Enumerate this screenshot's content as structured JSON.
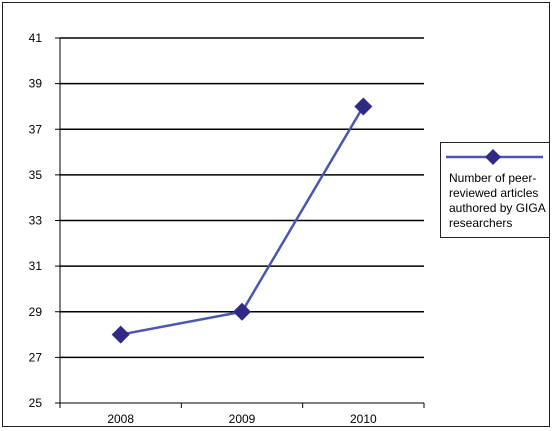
{
  "chart_data": {
    "type": "line",
    "categories": [
      "2008",
      "2009",
      "2010"
    ],
    "series": [
      {
        "name": "Number of peer-reviewed articles authored by GIGA researchers",
        "values": [
          28,
          29,
          38
        ],
        "color": "#4a56b0",
        "marker": "diamond",
        "marker_color": "#2e2a86"
      }
    ],
    "title": "",
    "xlabel": "",
    "ylabel": "",
    "ylim": [
      25,
      41
    ],
    "yticks": [
      25,
      27,
      29,
      31,
      33,
      35,
      37,
      39,
      41
    ],
    "grid": true,
    "legend": "right"
  }
}
